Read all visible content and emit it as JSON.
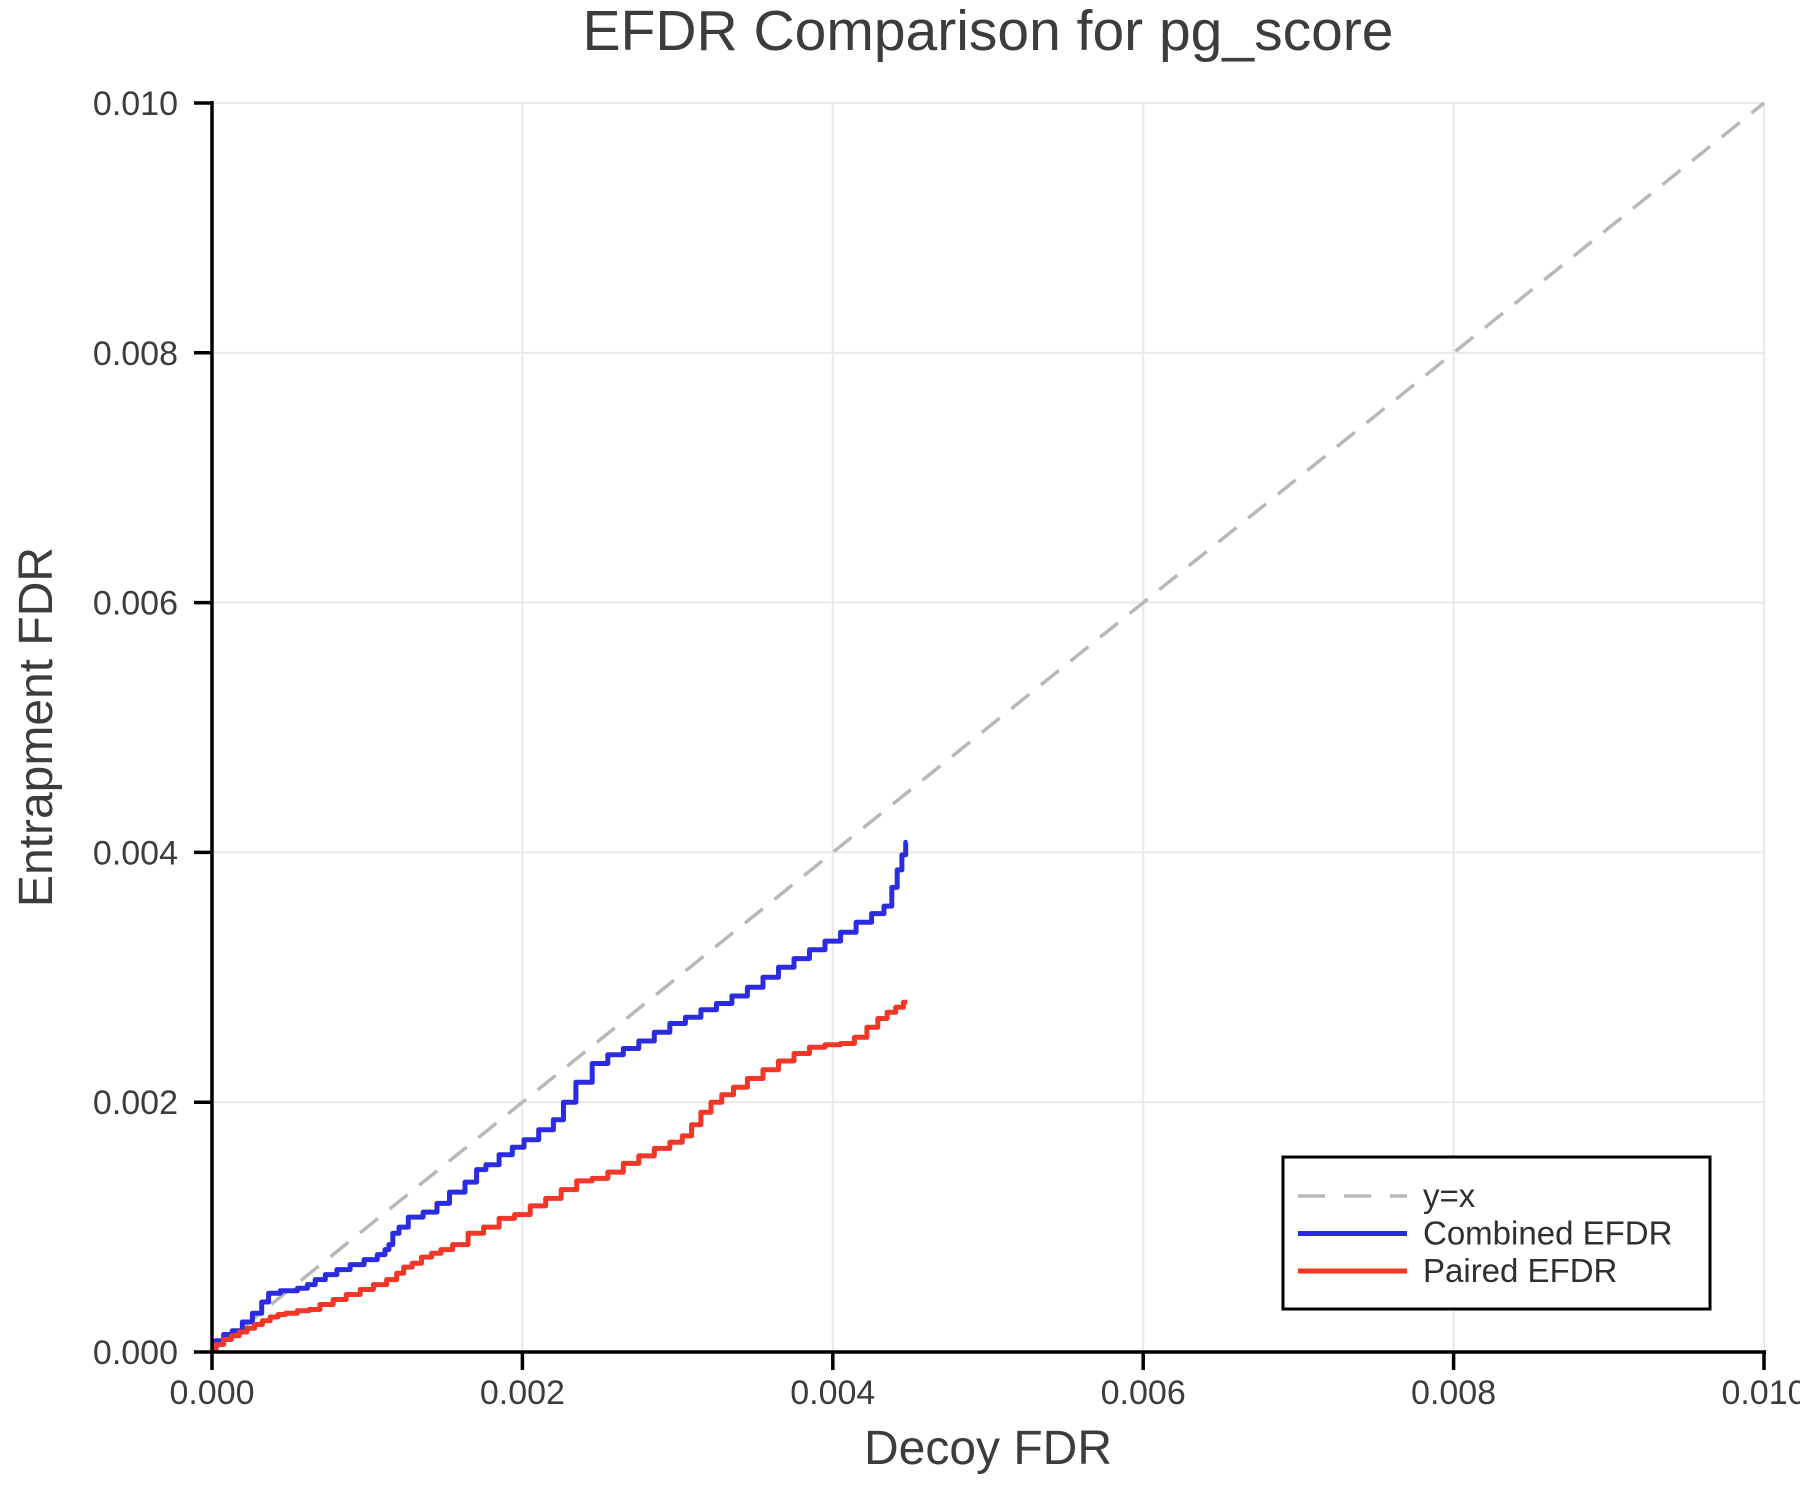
{
  "chart_data": {
    "type": "line",
    "title": "EFDR Comparison for pg_score",
    "xlabel": "Decoy FDR",
    "ylabel": "Entrapment FDR",
    "xlim": [
      0.0,
      0.01
    ],
    "ylim": [
      0.0,
      0.01
    ],
    "grid": true,
    "xticks": {
      "values": [
        0.0,
        0.002,
        0.004,
        0.006,
        0.008,
        0.01
      ],
      "labels": [
        "0.000",
        "0.002",
        "0.004",
        "0.006",
        "0.008",
        "0.010"
      ]
    },
    "yticks": {
      "values": [
        0.0,
        0.002,
        0.004,
        0.006,
        0.008,
        0.01
      ],
      "labels": [
        "0.000",
        "0.002",
        "0.004",
        "0.006",
        "0.008",
        "0.010"
      ]
    },
    "colors": {
      "reference": "#b8b8b8",
      "combined": "#2b2be2",
      "paired": "#f23628",
      "gridline": "#e9e9e9",
      "spine": "#000000",
      "text": "#3c3c3c"
    },
    "legend": {
      "position": "lower right",
      "entries": [
        {
          "key": "y-equals-x",
          "label": "y=x",
          "color": "#b8b8b8",
          "dashed": true
        },
        {
          "key": "combined-efdr",
          "label": "Combined EFDR",
          "color": "#2b2be2",
          "dashed": false
        },
        {
          "key": "paired-efdr",
          "label": "Paired EFDR",
          "color": "#f23628",
          "dashed": false
        }
      ]
    },
    "series": [
      {
        "key": "y-equals-x",
        "name": "y=x",
        "style": "dashed",
        "interpolation": "linear",
        "color": "#b8b8b8",
        "x": [
          0.0,
          0.01
        ],
        "y": [
          0.0,
          0.01
        ]
      },
      {
        "key": "combined-efdr",
        "name": "Combined EFDR",
        "style": "solid",
        "interpolation": "step",
        "color": "#2b2be2",
        "x": [
          0.0,
          5e-05,
          0.0001,
          0.00016,
          0.00023,
          0.00029,
          0.00035,
          0.00038,
          0.0005,
          0.0006,
          0.00063,
          0.0007,
          0.00076,
          0.00085,
          0.00093,
          0.00103,
          0.0011,
          0.00113,
          0.00115,
          0.00118,
          0.00123,
          0.0013,
          0.00142,
          0.00148,
          0.00158,
          0.00168,
          0.00173,
          0.0018,
          0.0019,
          0.00197,
          0.00205,
          0.00216,
          0.00224,
          0.00229,
          0.0024,
          0.0025,
          0.0026,
          0.0027,
          0.0028,
          0.0029,
          0.003,
          0.0031,
          0.0032,
          0.0033,
          0.0034,
          0.0035,
          0.0036,
          0.0037,
          0.0038,
          0.0039,
          0.004,
          0.0041,
          0.0042,
          0.0043,
          0.00436,
          0.0044,
          0.00443,
          0.00446,
          0.00448
        ],
        "y": [
          2e-05,
          9e-05,
          0.00014,
          0.00017,
          0.00024,
          0.00031,
          0.0004,
          0.00047,
          0.00049,
          0.00051,
          0.00054,
          0.00058,
          0.00062,
          0.00066,
          0.0007,
          0.00074,
          0.00078,
          0.00082,
          0.00086,
          0.00095,
          0.001,
          0.00108,
          0.00112,
          0.00119,
          0.00128,
          0.00136,
          0.00146,
          0.0015,
          0.00158,
          0.00164,
          0.0017,
          0.00178,
          0.00186,
          0.002,
          0.00216,
          0.00231,
          0.00238,
          0.00243,
          0.00249,
          0.00256,
          0.00263,
          0.00268,
          0.00274,
          0.00279,
          0.00285,
          0.00292,
          0.003,
          0.00308,
          0.00315,
          0.00322,
          0.00329,
          0.00336,
          0.00344,
          0.00351,
          0.00357,
          0.00372,
          0.00386,
          0.00398,
          0.00408
        ]
      },
      {
        "key": "paired-efdr",
        "name": "Paired EFDR",
        "style": "solid",
        "interpolation": "step",
        "color": "#f23628",
        "x": [
          0.0,
          5e-05,
          0.0001,
          0.00015,
          0.0002,
          0.00025,
          0.0003,
          0.00035,
          0.0004,
          0.00045,
          0.0005,
          0.0006,
          0.00065,
          0.00074,
          0.00082,
          0.00091,
          0.001,
          0.00108,
          0.00117,
          0.00121,
          0.00126,
          0.00132,
          0.00138,
          0.00145,
          0.0015,
          0.0016,
          0.0017,
          0.0018,
          0.0019,
          0.002,
          0.0021,
          0.0022,
          0.0023,
          0.0024,
          0.0025,
          0.0026,
          0.0027,
          0.0028,
          0.0029,
          0.003,
          0.00306,
          0.00312,
          0.00318,
          0.00325,
          0.00332,
          0.0034,
          0.0035,
          0.0036,
          0.0037,
          0.0038,
          0.0039,
          0.004,
          0.0041,
          0.00418,
          0.00426,
          0.00432,
          0.00438,
          0.00443,
          0.00448
        ],
        "y": [
          2e-05,
          6e-05,
          0.0001,
          0.00013,
          0.00016,
          0.00019,
          0.00022,
          0.00025,
          0.00028,
          0.0003,
          0.00031,
          0.00033,
          0.00034,
          0.00038,
          0.00042,
          0.00046,
          0.0005,
          0.00054,
          0.00058,
          0.00063,
          0.00068,
          0.00071,
          0.00076,
          0.00079,
          0.00082,
          0.00086,
          0.00095,
          0.001,
          0.00107,
          0.0011,
          0.00117,
          0.00123,
          0.0013,
          0.00137,
          0.00139,
          0.00144,
          0.00151,
          0.00157,
          0.00163,
          0.00168,
          0.00173,
          0.00182,
          0.00192,
          0.002,
          0.00206,
          0.00212,
          0.00219,
          0.00226,
          0.00233,
          0.00239,
          0.00244,
          0.00246,
          0.00247,
          0.00252,
          0.0026,
          0.00267,
          0.00272,
          0.00276,
          0.0028
        ]
      }
    ]
  }
}
